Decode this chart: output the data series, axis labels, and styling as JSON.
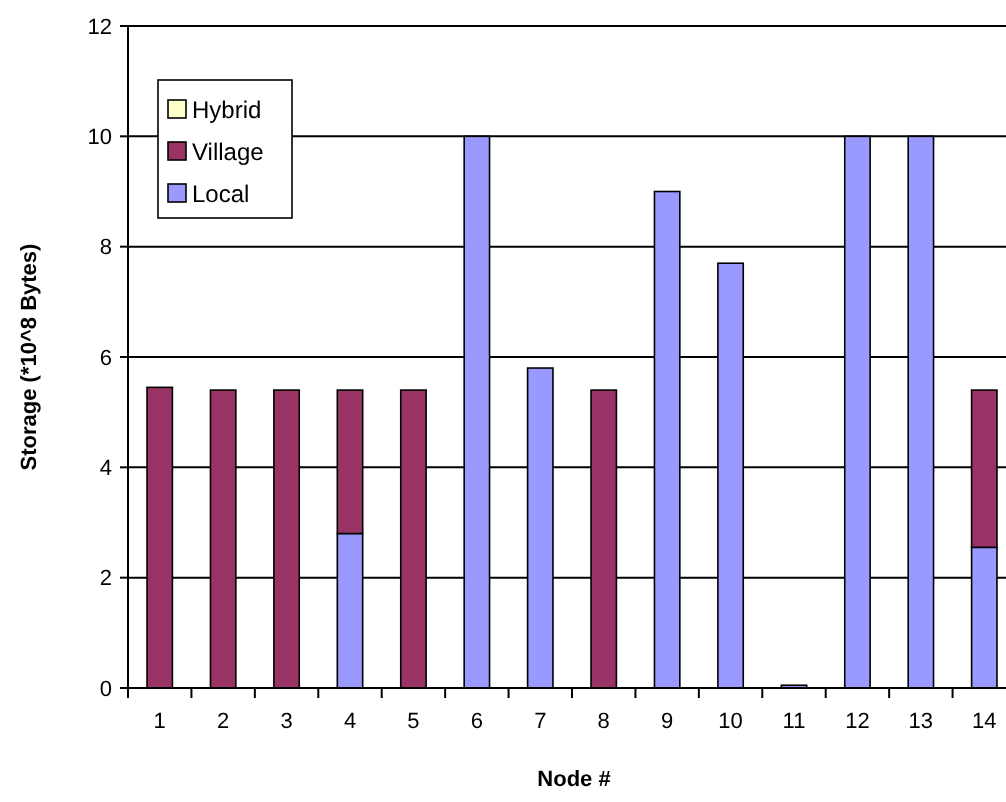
{
  "chart_data": {
    "type": "bar",
    "stacked": true,
    "xlabel": "Node #",
    "ylabel": "Storage (*10^8 Bytes)",
    "categories": [
      "1",
      "2",
      "3",
      "4",
      "5",
      "6",
      "7",
      "8",
      "9",
      "10",
      "11",
      "12",
      "13",
      "14"
    ],
    "ylim": [
      0,
      12
    ],
    "yticks": [
      0,
      2,
      4,
      6,
      8,
      10,
      12
    ],
    "grid": "y",
    "legend": "top left",
    "series": [
      {
        "name": "Local",
        "color": "#9999ff",
        "values": [
          0,
          0,
          0,
          2.8,
          0,
          10,
          5.8,
          0,
          9,
          7.7,
          0.05,
          10,
          10,
          2.55
        ]
      },
      {
        "name": "Village",
        "color": "#993366",
        "values": [
          5.45,
          5.4,
          5.4,
          2.6,
          5.4,
          0,
          0,
          5.4,
          0,
          0,
          0,
          0,
          0,
          2.85
        ]
      },
      {
        "name": "Hybrid",
        "color": "#ffffcc",
        "values": [
          0,
          0,
          0,
          0,
          0,
          0,
          0,
          0,
          0,
          0,
          0,
          0,
          0,
          0
        ]
      }
    ]
  }
}
